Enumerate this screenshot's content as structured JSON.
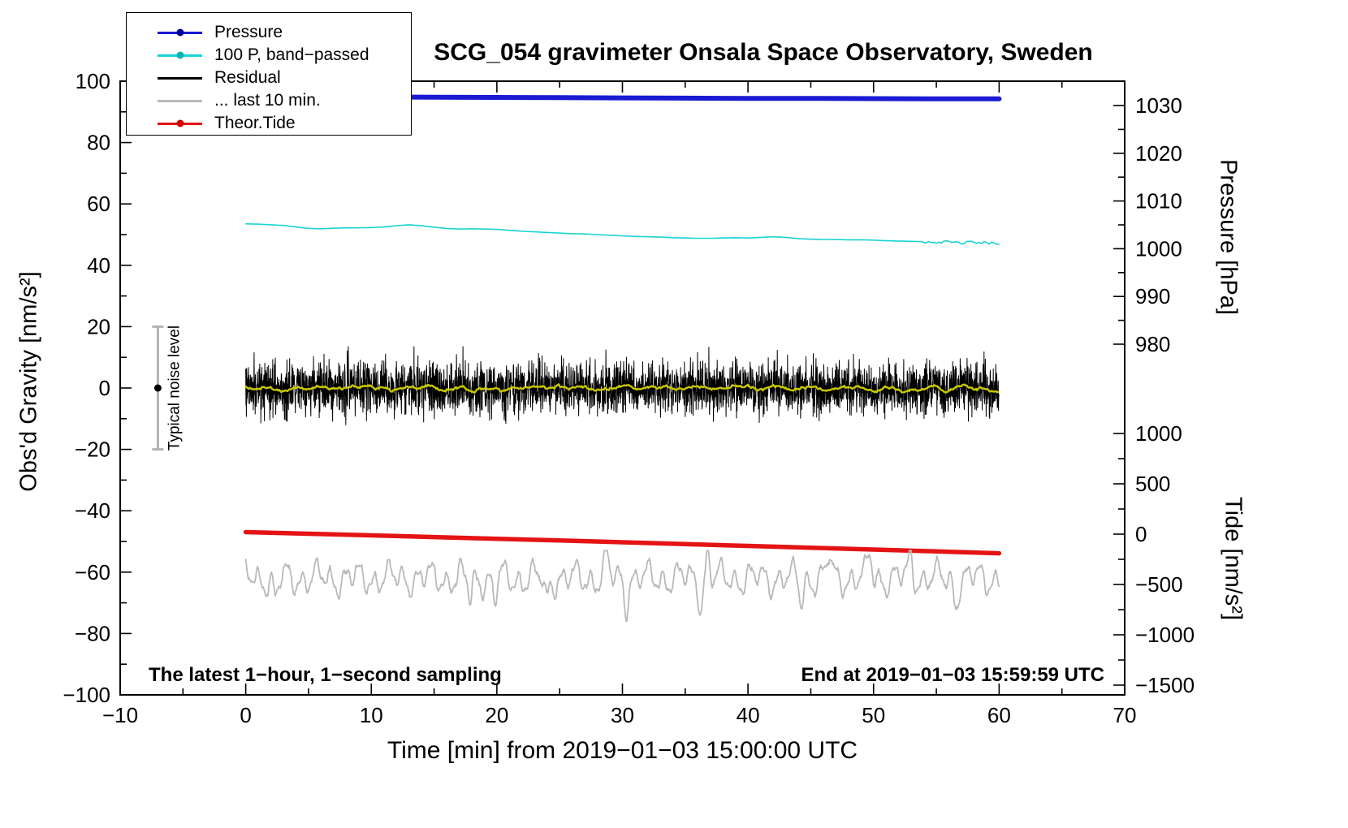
{
  "chart_data": {
    "type": "line",
    "title": "SCG_054 gravimeter Onsala Space Observatory, Sweden",
    "xlabel": "Time [min] from 2019−01−03 15:00:00 UTC",
    "ylabel_left": "Obs'd Gravity [nm/s²]",
    "ylabel_pressure": "Pressure [hPa]",
    "ylabel_tide": "Tide [nm/s²]",
    "x_axis": {
      "min": -10,
      "max": 70,
      "major": 10,
      "minor": 5
    },
    "y_left_axis": {
      "min": -100,
      "max": 100,
      "major": 20,
      "minor": 10
    },
    "pressure_axis": {
      "ticks": [
        1030,
        1020,
        1010,
        1000,
        990,
        980
      ],
      "minor_ticks": [
        1025,
        1015,
        1005,
        995,
        985
      ]
    },
    "tide_axis": {
      "ticks": [
        1000,
        500,
        0,
        -500,
        -1000,
        -1500
      ],
      "minor_ticks": [
        750,
        250,
        -250,
        -750,
        -1250
      ]
    },
    "series": [
      {
        "id": "pressure",
        "name": "Pressure",
        "axis": "pressure",
        "color": "#1a1ad2",
        "width": 6,
        "x": [
          0,
          5,
          10,
          15,
          20,
          25,
          30,
          35,
          40,
          45,
          50,
          55,
          60
        ],
        "y": [
          1031.9,
          1031.85,
          1031.8,
          1031.75,
          1031.7,
          1031.65,
          1031.6,
          1031.55,
          1031.5,
          1031.5,
          1031.45,
          1031.4,
          1031.4
        ]
      },
      {
        "id": "band_passed",
        "name": "100 P, band−passed",
        "axis": "gravity",
        "color": "#18d2d2",
        "width": 1.6,
        "x_start": 0,
        "x_step": 1,
        "values": [
          53.5,
          53.4,
          53.2,
          53.0,
          52.5,
          52.0,
          51.9,
          52.1,
          52.2,
          52.2,
          52.3,
          52.5,
          52.9,
          53.2,
          52.9,
          52.4,
          52.0,
          51.8,
          51.9,
          51.8,
          51.7,
          51.4,
          51.1,
          50.9,
          50.7,
          50.5,
          50.3,
          50.2,
          50.0,
          49.8,
          49.6,
          49.4,
          49.3,
          49.2,
          49.0,
          48.9,
          48.8,
          48.8,
          48.9,
          49.0,
          48.9,
          49.1,
          49.3,
          49.1,
          48.7,
          48.5,
          48.4,
          48.4,
          48.3,
          48.3,
          48.2,
          48.0,
          47.9,
          47.8,
          47.7,
          47.6,
          47.5,
          47.3,
          47.5,
          47.2,
          47.3
        ],
        "jitter_from": 54,
        "jitter_amp": 0.9,
        "jitter_seed": 42
      },
      {
        "id": "residual",
        "name": "Residual",
        "axis": "gravity",
        "color": "#000000",
        "width": 1,
        "gen": {
          "seed": 20190103,
          "points": 3600,
          "std": 4.1,
          "spike_prob": 0.012,
          "clip": 13.5
        }
      },
      {
        "id": "residual_smooth",
        "name": "Residual low-passed",
        "axis": "gravity",
        "color": "#c8c800",
        "width": 2.4,
        "window": 25
      },
      {
        "id": "last10",
        "name": "... last 10 min.",
        "axis": "gravity",
        "color": "#b9b9b9",
        "width": 1.8,
        "gen": {
          "seed": 5501,
          "baseline": -62,
          "components": [
            {
              "amp": 3.4,
              "period": 1.15
            },
            {
              "amp": 2.4,
              "period": 2.9
            },
            {
              "amp": 1.2,
              "period": 0.52
            }
          ],
          "noise": 1.2,
          "spikes": 13,
          "spike_amp": 7.5,
          "spike_width": 0.22,
          "clip_low": -76,
          "clip_high": -53
        }
      },
      {
        "id": "theor_tide",
        "name": "Theor.Tide",
        "axis": "tide",
        "color": "#e41414",
        "width": 5.5,
        "x": [
          0,
          5,
          10,
          15,
          20,
          25,
          30,
          35,
          40,
          45,
          50,
          55,
          60
        ],
        "y": [
          20,
          4,
          -12,
          -29,
          -46,
          -63,
          -81,
          -99,
          -117,
          -135,
          -153,
          -171,
          -190
        ]
      }
    ],
    "noise_bar": {
      "x": -7,
      "center": 0,
      "half_range": 20,
      "color": "#b4b4b4"
    }
  },
  "legend": [
    {
      "label": "Pressure",
      "color": "#1a1ad2",
      "marker": true,
      "dot_color": "#0000a0"
    },
    {
      "label": "100 P, band−passed",
      "color": "#18d2d2",
      "marker": true,
      "dot_color": "#00b4b4"
    },
    {
      "label": "Residual",
      "color": "#000000",
      "marker": false
    },
    {
      "label": "... last 10 min.",
      "color": "#b9b9b9",
      "marker": false
    },
    {
      "label": "Theor.Tide",
      "color": "#e41414",
      "marker": true,
      "dot_color": "#d20000"
    }
  ],
  "annotations": {
    "bottom_left": "The latest 1−hour, 1−second sampling",
    "bottom_right": "End at 2019−01−03 15:59:59 UTC",
    "noise_label": "Typical noise level"
  }
}
